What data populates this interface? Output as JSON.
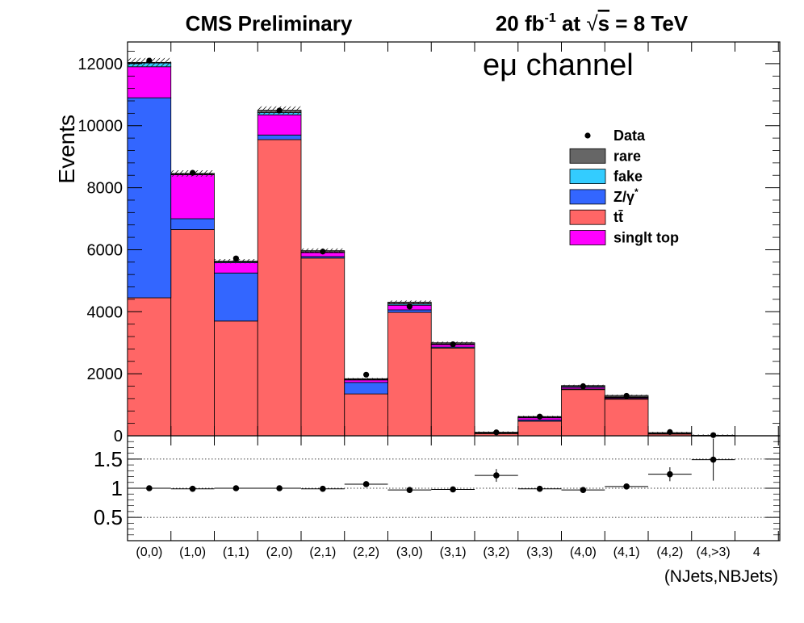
{
  "header": {
    "left": "CMS Preliminary",
    "lumi_value": "20 fb",
    "lumi_exp": "-1",
    "lumi_at": " at ",
    "sqrt_sign": "√",
    "energy_var": "s",
    "energy_value": " = 8 TeV"
  },
  "channel": {
    "prefix": "e",
    "mu": "μ",
    "suffix": " channel"
  },
  "chart_data": [
    {
      "type": "bar",
      "stacked": true,
      "categories": [
        "(0,0)",
        "(1,0)",
        "(1,1)",
        "(2,0)",
        "(2,1)",
        "(2,2)",
        "(3,0)",
        "(3,1)",
        "(3,2)",
        "(3,3)",
        "(4,0)",
        "(4,1)",
        "(4,2)",
        "(4,>3)",
        "4"
      ],
      "xlabel": "(NJets,NBJets)",
      "ylabel": "Events",
      "ylim": [
        0,
        12700
      ],
      "yticks": [
        0,
        2000,
        4000,
        6000,
        8000,
        10000,
        12000
      ],
      "series": [
        {
          "name": "tt̄",
          "color": "#ff6666",
          "values": [
            4450,
            6650,
            3700,
            9550,
            5730,
            1350,
            3980,
            2830,
            70,
            470,
            1490,
            1180,
            60,
            10,
            0
          ]
        },
        {
          "name": "Z/γ*",
          "color": "#3366ff",
          "values": [
            6450,
            350,
            1550,
            150,
            50,
            370,
            80,
            30,
            20,
            40,
            20,
            20,
            10,
            5,
            0
          ]
        },
        {
          "name": "singlt top",
          "color": "#ff00ff",
          "values": [
            1000,
            1420,
            330,
            650,
            130,
            80,
            150,
            80,
            10,
            70,
            50,
            30,
            10,
            0,
            0
          ]
        },
        {
          "name": "fake",
          "color": "#33ccff",
          "values": [
            120,
            20,
            30,
            70,
            20,
            20,
            40,
            20,
            5,
            20,
            30,
            20,
            10,
            0,
            0
          ]
        },
        {
          "name": "rare",
          "color": "#666666",
          "values": [
            20,
            20,
            20,
            80,
            40,
            20,
            60,
            40,
            10,
            20,
            30,
            50,
            10,
            0,
            0
          ]
        }
      ],
      "data_points": {
        "name": "Data",
        "values": [
          12100,
          8480,
          5720,
          10490,
          5940,
          1970,
          4170,
          2950,
          110,
          620,
          1600,
          1290,
          120,
          20,
          null
        ]
      },
      "legend": [
        "Data",
        "rare",
        "fake",
        "Z/γ*",
        "tt̄",
        "singlt top"
      ],
      "legend_placement": "top-right"
    },
    {
      "type": "scatter",
      "categories": [
        "(0,0)",
        "(1,0)",
        "(1,1)",
        "(2,0)",
        "(2,1)",
        "(2,2)",
        "(3,0)",
        "(3,1)",
        "(3,2)",
        "(3,3)",
        "(4,0)",
        "(4,1)",
        "(4,2)",
        "(4,>3)",
        "4"
      ],
      "values": [
        1.0,
        0.99,
        1.0,
        1.0,
        0.99,
        1.07,
        0.97,
        0.98,
        1.22,
        0.99,
        0.97,
        1.03,
        1.24,
        1.49,
        null
      ],
      "errors": [
        0.02,
        0.02,
        0.02,
        0.02,
        0.02,
        0.04,
        0.02,
        0.03,
        0.11,
        0.05,
        0.03,
        0.04,
        0.12,
        0.36,
        null
      ],
      "ylim": [
        0.1,
        1.9
      ],
      "yticks": [
        "0.5",
        "1",
        "1.5"
      ],
      "reference_lines": [
        0.5,
        1,
        1.5
      ]
    }
  ]
}
